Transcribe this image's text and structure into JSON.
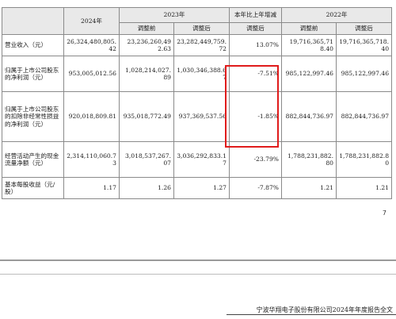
{
  "header": {
    "y2024": "2024年",
    "y2023": "2023年",
    "change": "本年比上年增减",
    "y2022": "2022年",
    "before": "调整前",
    "after": "调整后",
    "change_after": "调整后"
  },
  "rows": [
    {
      "label": "营业收入（元）",
      "v2024": "26,324,480,805.42",
      "v2023_before": "23,236,260,492.63",
      "v2023_after": "23,282,449,759.72",
      "change": "13.07%",
      "v2022_before": "19,716,365,718.40",
      "v2022_after": "19,716,365,718.40"
    },
    {
      "label": "归属于上市公司股东的净利润（元）",
      "v2024": "953,005,012.56",
      "v2023_before": "1,028,214,027.89",
      "v2023_after": "1,030,346,388.67",
      "change": "-7.51%",
      "v2022_before": "985,122,997.46",
      "v2022_after": "985,122,997.46"
    },
    {
      "label": "归属于上市公司股东的扣除非经常性损益的净利润（元）",
      "v2024": "920,018,809.81",
      "v2023_before": "935,018,772.49",
      "v2023_after": "937,369,537.56",
      "change": "-1.85%",
      "v2022_before": "882,844,736.97",
      "v2022_after": "882,844,736.97"
    },
    {
      "label": "经营活动产生的现金流量净额（元）",
      "v2024": "2,314,110,060.73",
      "v2023_before": "3,018,537,267.07",
      "v2023_after": "3,036,292,833.17",
      "change": "-23.79%",
      "v2022_before": "1,788,231,882.80",
      "v2022_after": "1,788,231,882.80"
    },
    {
      "label": "基本每股收益（元/股）",
      "v2024": "1.17",
      "v2023_before": "1.26",
      "v2023_after": "1.27",
      "change": "-7.87%",
      "v2022_before": "1.21",
      "v2022_after": "1.21"
    }
  ],
  "page_number": "7",
  "footer": "宁波华翔电子股份有限公司2024年年度报告全文",
  "highlight_color": "#e01b1b"
}
